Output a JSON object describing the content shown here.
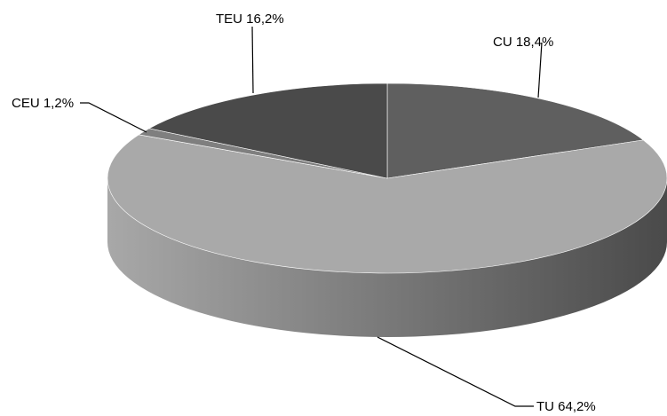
{
  "chart_data": {
    "type": "pie",
    "style": "3d",
    "slices": [
      {
        "label": "CU 18,4%",
        "value": 18.4,
        "color": "#5f5f5f"
      },
      {
        "label": "TU 64,2%",
        "value": 64.2,
        "color": "#a9a9a9"
      },
      {
        "label": "CEU 1,2%",
        "value": 1.2,
        "color": "#7f7f7f"
      },
      {
        "label": "TEU 16,2%",
        "value": 16.2,
        "color": "#4a4a4a"
      }
    ],
    "side_colors": {
      "light": "#a8a8a8",
      "dark": "#4a4a4a"
    }
  }
}
